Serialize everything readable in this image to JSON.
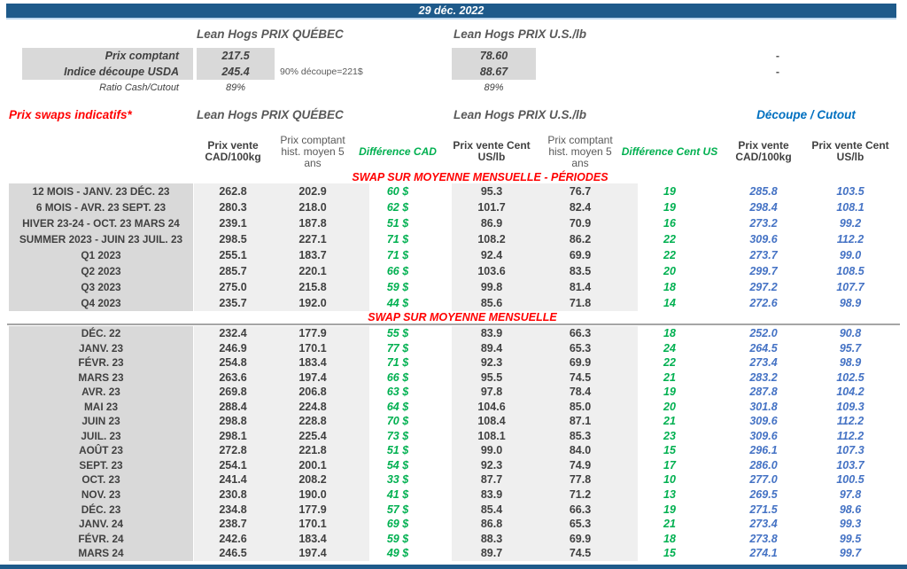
{
  "banner": {
    "date": "29 déc. 2022"
  },
  "colors": {
    "banner_blue": "#1E5A8A",
    "accent_red": "#FF0000",
    "accent_green": "#00B050",
    "value_blue": "#4472C4",
    "cutout_blue": "#0070C0",
    "label_bg": "#D9D9D9",
    "stripe_bg": "#EFEFEF"
  },
  "spot": {
    "qc_header": "Lean Hogs PRIX QUÉBEC",
    "us_header": "Lean Hogs PRIX U.S./lb",
    "rows": [
      {
        "label": "Prix comptant",
        "qc": "217.5",
        "note": "",
        "us": "78.60",
        "dash": "-"
      },
      {
        "label": "Indice découpe USDA",
        "qc": "245.4",
        "note": "90% découpe=221$",
        "us": "88.67",
        "dash": "-"
      },
      {
        "label": "Ratio Cash/Cutout",
        "qc": "89%",
        "note": "",
        "us": "89%",
        "dash": ""
      }
    ]
  },
  "swaps": {
    "title": "Prix swaps indicatifs*",
    "qc_header": "Lean Hogs PRIX QUÉBEC",
    "us_header": "Lean Hogs PRIX U.S./lb",
    "cutout_header": "Découpe / Cutout",
    "columns": [
      {
        "label": "Prix vente CAD/100kg"
      },
      {
        "label": "Prix comptant hist. moyen 5 ans"
      },
      {
        "label": "Différence CAD"
      },
      {
        "label": "Prix vente Cent US/lb"
      },
      {
        "label": "Prix comptant hist. moyen 5 ans"
      },
      {
        "label": "Différence Cent US"
      },
      {
        "label": "Prix vente CAD/100kg"
      },
      {
        "label": "Prix vente Cent US/lb"
      }
    ],
    "sections": [
      {
        "title": "SWAP SUR MOYENNE MENSUELLE - PÉRIODES",
        "rows": [
          {
            "label": "12 MOIS - JANV. 23 DÉC. 23",
            "qc_vente": "262.8",
            "qc_hist": "202.9",
            "diff_cad": "60 $",
            "us_vente": "95.3",
            "us_hist": "76.7",
            "diff_us": "19",
            "cut_cad": "285.8",
            "cut_us": "103.5"
          },
          {
            "label": "6 MOIS - AVR. 23 SEPT. 23",
            "qc_vente": "280.3",
            "qc_hist": "218.0",
            "diff_cad": "62 $",
            "us_vente": "101.7",
            "us_hist": "82.4",
            "diff_us": "19",
            "cut_cad": "298.4",
            "cut_us": "108.1"
          },
          {
            "label": "HIVER 23-24 -  OCT. 23 MARS 24",
            "qc_vente": "239.1",
            "qc_hist": "187.8",
            "diff_cad": "51 $",
            "us_vente": "86.9",
            "us_hist": "70.9",
            "diff_us": "16",
            "cut_cad": "273.2",
            "cut_us": "99.2"
          },
          {
            "label": "SUMMER 2023 - JUIN 23 JUIL. 23",
            "qc_vente": "298.5",
            "qc_hist": "227.1",
            "diff_cad": "71 $",
            "us_vente": "108.2",
            "us_hist": "86.2",
            "diff_us": "22",
            "cut_cad": "309.6",
            "cut_us": "112.2"
          },
          {
            "label": "Q1 2023",
            "qc_vente": "255.1",
            "qc_hist": "183.7",
            "diff_cad": "71 $",
            "us_vente": "92.4",
            "us_hist": "69.9",
            "diff_us": "22",
            "cut_cad": "273.7",
            "cut_us": "99.0"
          },
          {
            "label": "Q2 2023",
            "qc_vente": "285.7",
            "qc_hist": "220.1",
            "diff_cad": "66 $",
            "us_vente": "103.6",
            "us_hist": "83.5",
            "diff_us": "20",
            "cut_cad": "299.7",
            "cut_us": "108.5"
          },
          {
            "label": "Q3 2023",
            "qc_vente": "275.0",
            "qc_hist": "215.8",
            "diff_cad": "59 $",
            "us_vente": "99.8",
            "us_hist": "81.4",
            "diff_us": "18",
            "cut_cad": "297.2",
            "cut_us": "107.7"
          },
          {
            "label": "Q4 2023",
            "qc_vente": "235.7",
            "qc_hist": "192.0",
            "diff_cad": "44 $",
            "us_vente": "85.6",
            "us_hist": "71.8",
            "diff_us": "14",
            "cut_cad": "272.6",
            "cut_us": "98.9"
          }
        ]
      },
      {
        "title": "SWAP SUR MOYENNE MENSUELLE",
        "rows": [
          {
            "label": "DÉC. 22",
            "qc_vente": "232.4",
            "qc_hist": "177.9",
            "diff_cad": "55 $",
            "us_vente": "83.9",
            "us_hist": "66.3",
            "diff_us": "18",
            "cut_cad": "252.0",
            "cut_us": "90.8"
          },
          {
            "label": "JANV. 23",
            "qc_vente": "246.9",
            "qc_hist": "170.1",
            "diff_cad": "77 $",
            "us_vente": "89.4",
            "us_hist": "65.3",
            "diff_us": "24",
            "cut_cad": "264.5",
            "cut_us": "95.7"
          },
          {
            "label": "FÉVR. 23",
            "qc_vente": "254.8",
            "qc_hist": "183.4",
            "diff_cad": "71 $",
            "us_vente": "92.3",
            "us_hist": "69.9",
            "diff_us": "22",
            "cut_cad": "273.4",
            "cut_us": "98.9"
          },
          {
            "label": "MARS 23",
            "qc_vente": "263.6",
            "qc_hist": "197.4",
            "diff_cad": "66 $",
            "us_vente": "95.5",
            "us_hist": "74.5",
            "diff_us": "21",
            "cut_cad": "283.2",
            "cut_us": "102.5"
          },
          {
            "label": "AVR. 23",
            "qc_vente": "269.8",
            "qc_hist": "206.8",
            "diff_cad": "63 $",
            "us_vente": "97.8",
            "us_hist": "78.4",
            "diff_us": "19",
            "cut_cad": "287.8",
            "cut_us": "104.2"
          },
          {
            "label": "MAI 23",
            "qc_vente": "288.4",
            "qc_hist": "224.8",
            "diff_cad": "64 $",
            "us_vente": "104.6",
            "us_hist": "85.0",
            "diff_us": "20",
            "cut_cad": "301.8",
            "cut_us": "109.3"
          },
          {
            "label": "JUIN 23",
            "qc_vente": "298.8",
            "qc_hist": "228.8",
            "diff_cad": "70 $",
            "us_vente": "108.4",
            "us_hist": "87.1",
            "diff_us": "21",
            "cut_cad": "309.6",
            "cut_us": "112.2"
          },
          {
            "label": "JUIL. 23",
            "qc_vente": "298.1",
            "qc_hist": "225.4",
            "diff_cad": "73 $",
            "us_vente": "108.1",
            "us_hist": "85.3",
            "diff_us": "23",
            "cut_cad": "309.6",
            "cut_us": "112.2"
          },
          {
            "label": "AOÛT 23",
            "qc_vente": "272.8",
            "qc_hist": "221.8",
            "diff_cad": "51 $",
            "us_vente": "99.0",
            "us_hist": "84.0",
            "diff_us": "15",
            "cut_cad": "296.1",
            "cut_us": "107.3"
          },
          {
            "label": "SEPT. 23",
            "qc_vente": "254.1",
            "qc_hist": "200.1",
            "diff_cad": "54 $",
            "us_vente": "92.3",
            "us_hist": "74.9",
            "diff_us": "17",
            "cut_cad": "286.0",
            "cut_us": "103.7"
          },
          {
            "label": "OCT. 23",
            "qc_vente": "241.4",
            "qc_hist": "208.2",
            "diff_cad": "33 $",
            "us_vente": "87.7",
            "us_hist": "77.8",
            "diff_us": "10",
            "cut_cad": "277.0",
            "cut_us": "100.5"
          },
          {
            "label": "NOV. 23",
            "qc_vente": "230.8",
            "qc_hist": "190.0",
            "diff_cad": "41 $",
            "us_vente": "83.9",
            "us_hist": "71.2",
            "diff_us": "13",
            "cut_cad": "269.5",
            "cut_us": "97.8"
          },
          {
            "label": "DÉC. 23",
            "qc_vente": "234.8",
            "qc_hist": "177.9",
            "diff_cad": "57 $",
            "us_vente": "85.4",
            "us_hist": "66.3",
            "diff_us": "19",
            "cut_cad": "271.5",
            "cut_us": "98.6"
          },
          {
            "label": "JANV. 24",
            "qc_vente": "238.7",
            "qc_hist": "170.1",
            "diff_cad": "69 $",
            "us_vente": "86.8",
            "us_hist": "65.3",
            "diff_us": "21",
            "cut_cad": "273.4",
            "cut_us": "99.3"
          },
          {
            "label": "FÉVR. 24",
            "qc_vente": "242.6",
            "qc_hist": "183.4",
            "diff_cad": "59 $",
            "us_vente": "88.3",
            "us_hist": "69.9",
            "diff_us": "18",
            "cut_cad": "273.8",
            "cut_us": "99.5"
          },
          {
            "label": "MARS 24",
            "qc_vente": "246.5",
            "qc_hist": "197.4",
            "diff_cad": "49 $",
            "us_vente": "89.7",
            "us_hist": "74.5",
            "diff_us": "15",
            "cut_cad": "274.1",
            "cut_us": "99.7"
          }
        ]
      }
    ]
  }
}
